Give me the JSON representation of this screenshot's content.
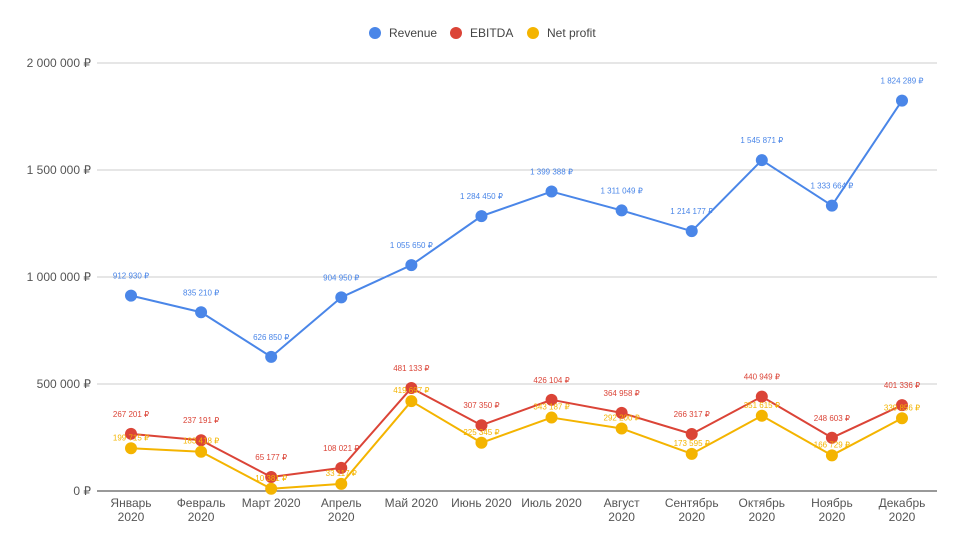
{
  "chart_data": {
    "type": "line",
    "title": "",
    "xlabel": "",
    "ylabel": "",
    "ylim": [
      0,
      2000000
    ],
    "y_ticks": [
      {
        "value": 0,
        "label": "0 ₽"
      },
      {
        "value": 500000,
        "label": "500 000 ₽"
      },
      {
        "value": 1000000,
        "label": "1 000 000 ₽"
      },
      {
        "value": 1500000,
        "label": "1 500 000 ₽"
      },
      {
        "value": 2000000,
        "label": "2 000 000 ₽"
      }
    ],
    "grid": true,
    "legend_position": "top-center",
    "categories": [
      [
        "Январь",
        "2020"
      ],
      [
        "Февраль",
        "2020"
      ],
      [
        "Март 2020"
      ],
      [
        "Апрель",
        "2020"
      ],
      [
        "Май 2020"
      ],
      [
        "Июнь 2020"
      ],
      [
        "Июль 2020"
      ],
      [
        "Август",
        "2020"
      ],
      [
        "Сентябрь",
        "2020"
      ],
      [
        "Октябрь",
        "2020"
      ],
      [
        "Ноябрь",
        "2020"
      ],
      [
        "Декабрь",
        "2020"
      ]
    ],
    "series": [
      {
        "name": "Revenue",
        "color": "#4a86e8",
        "values": [
          912930,
          835210,
          626850,
          904950,
          1055650,
          1284450,
          1399388,
          1311049,
          1214177,
          1545871,
          1333664,
          1824289
        ],
        "labels": [
          "912 930 ₽",
          "835 210 ₽",
          "626 850 ₽",
          "904 950 ₽",
          "1 055 650 ₽",
          "1 284 450 ₽",
          "1 399 388 ₽",
          "1 311 049 ₽",
          "1 214 177 ₽",
          "1 545 871 ₽",
          "1 333 664 ₽",
          "1 824 289 ₽"
        ]
      },
      {
        "name": "EBITDA",
        "color": "#db4437",
        "values": [
          267201,
          237191,
          65177,
          108021,
          481133,
          307350,
          426104,
          364958,
          266317,
          440949,
          248603,
          401336
        ],
        "labels": [
          "267 201 ₽",
          "237 191 ₽",
          "65 177 ₽",
          "108 021 ₽",
          "481 133 ₽",
          "307 350 ₽",
          "426 104 ₽",
          "364 958 ₽",
          "266 317 ₽",
          "440 949 ₽",
          "248 603 ₽",
          "401 336 ₽"
        ]
      },
      {
        "name": "Net profit",
        "color": "#f4b400",
        "values": [
          199715,
          183418,
          10381,
          33117,
          419697,
          225345,
          343187,
          292200,
          173595,
          351615,
          166729,
          339856
        ],
        "labels": [
          "199 715 ₽",
          "183 418 ₽",
          "10 381 ₽",
          "33 117 ₽",
          "419 697 ₽",
          "225 345 ₽",
          "343 187 ₽",
          "292 200 ₽",
          "173 595 ₽",
          "351 615 ₽",
          "166 729 ₽",
          "339 856 ₽"
        ]
      }
    ]
  }
}
